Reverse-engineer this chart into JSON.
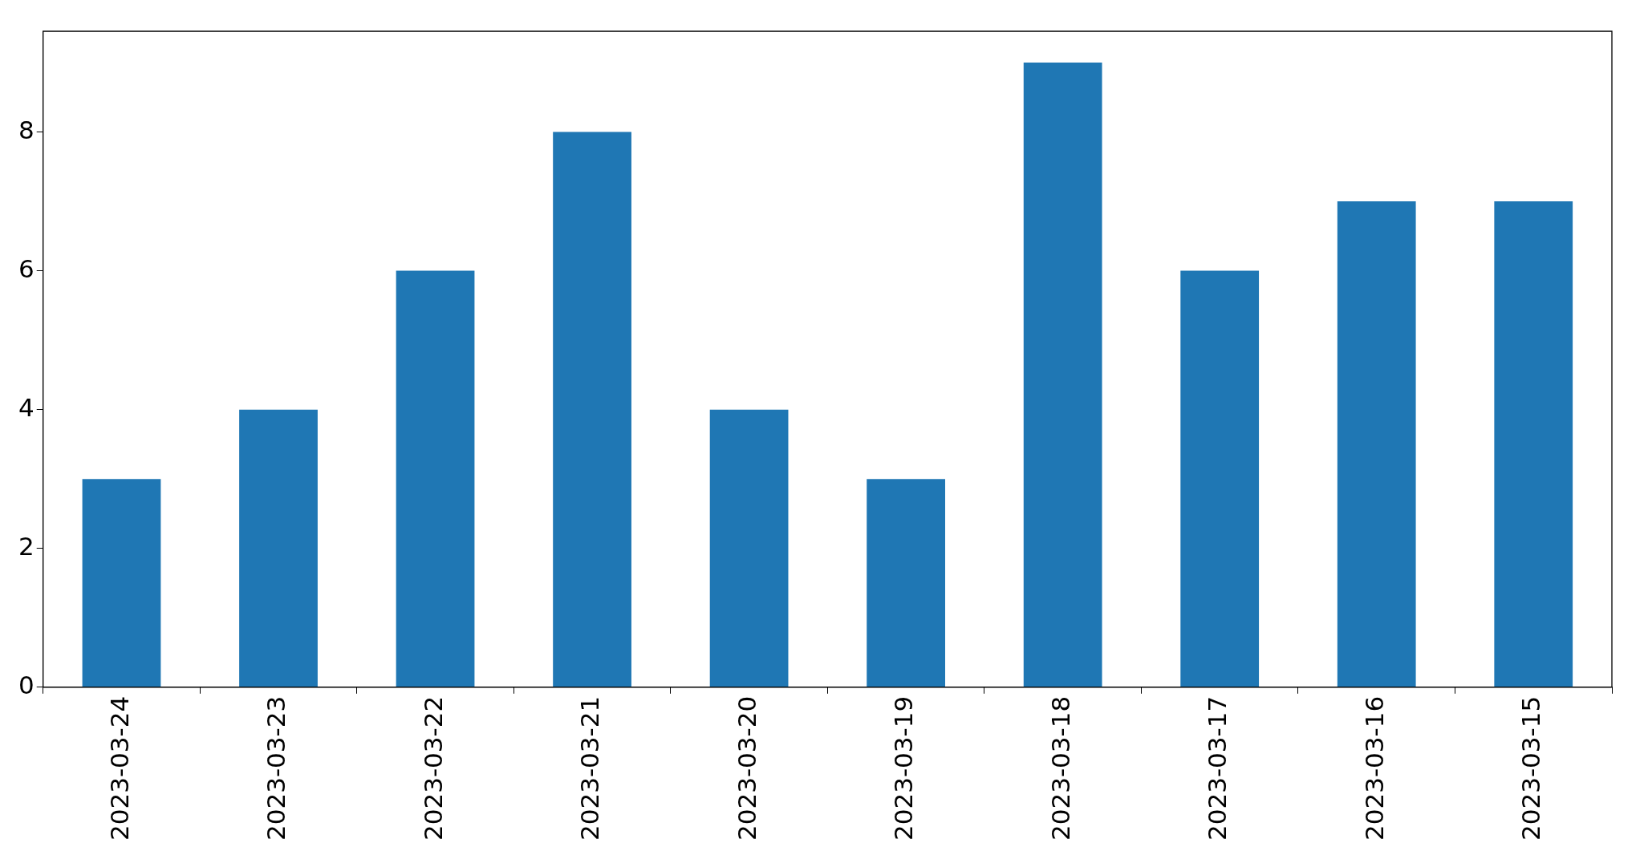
{
  "chart_data": {
    "type": "bar",
    "categories": [
      "2023-03-24",
      "2023-03-23",
      "2023-03-22",
      "2023-03-21",
      "2023-03-20",
      "2023-03-19",
      "2023-03-18",
      "2023-03-17",
      "2023-03-16",
      "2023-03-15"
    ],
    "values": [
      3,
      4,
      6,
      8,
      4,
      3,
      9,
      6,
      7,
      7
    ],
    "color": "#1f77b4",
    "ylim": [
      0,
      9.45
    ],
    "yticks": [
      0,
      2,
      4,
      6,
      8
    ]
  }
}
